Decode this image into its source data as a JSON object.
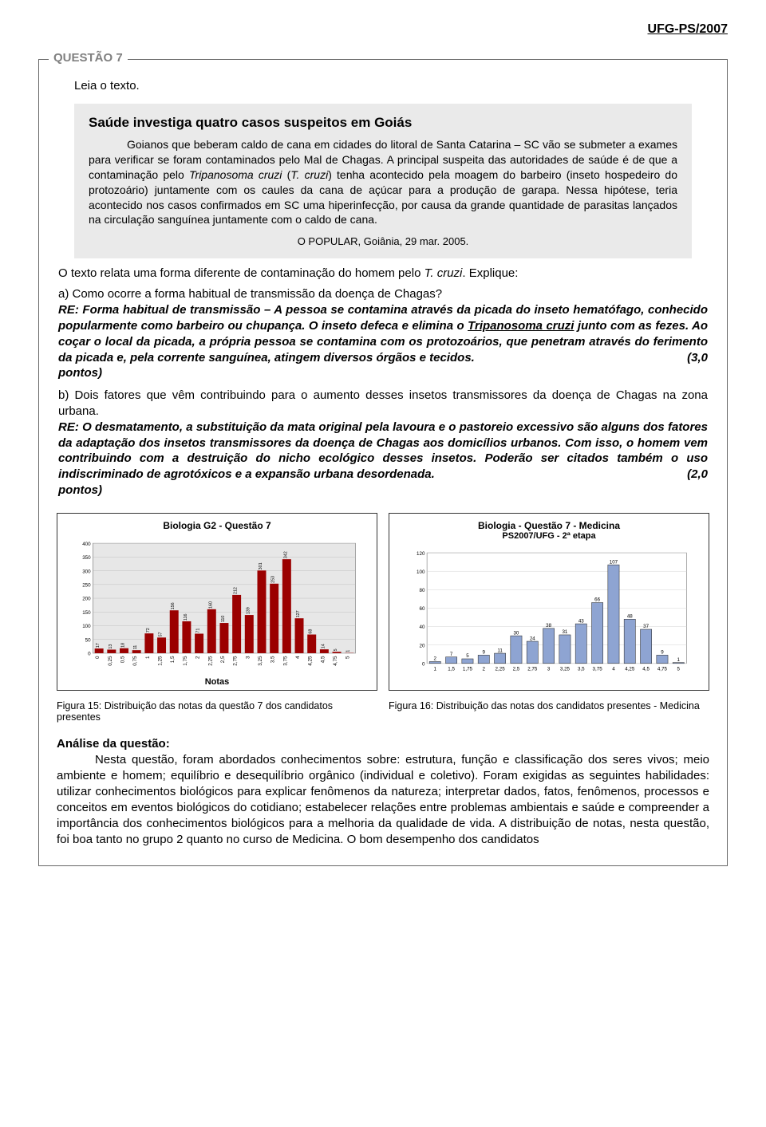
{
  "header": "UFG-PS/2007",
  "question_label": "QUESTÃO 7",
  "intro": "Leia o texto.",
  "quote": {
    "title": "Saúde investiga quatro casos suspeitos em Goiás",
    "para1": "Goianos que beberam caldo de cana em cidades do litoral de Santa Catarina – SC vão se submeter a exames para verificar se foram contaminados pelo Mal de Chagas. A principal suspeita das autoridades de saúde é de que a contaminação pelo ",
    "para1_ital": "Tripanosoma cruzi",
    "para1_after": " (",
    "para1_ital2": "T. cruzi",
    "para1_tail": ") tenha acontecido pela moagem do barbeiro (inseto hospedeiro do protozoário) juntamente com os caules da cana de açúcar para a produção de garapa. Nessa hipótese, teria acontecido nos casos confirmados em SC uma hiperinfecção, por causa da grande quantidade de parasitas lançados na circulação sanguínea juntamente com o caldo de cana.",
    "source": "O POPULAR, Goiânia, 29 mar. 2005."
  },
  "below_quote_pre": "O texto relata uma forma diferente de contaminação do homem pelo ",
  "below_quote_ital": "T. cruzi",
  "below_quote_post": ". Explique:",
  "item_a": {
    "label": "a)",
    "question": " Como ocorre a forma habitual de transmissão da doença de Chagas?",
    "answer_pre": "RE: Forma habitual de transmissão – A pessoa se contamina através da picada do inseto hematófago, conhecido popularmente como barbeiro ou chupança. O inseto defeca e elimina o ",
    "answer_ul": "Tripanosoma cruzi",
    "answer_mid": " junto com as fezes. Ao coçar o local da picada, a própria pessoa se contamina com os protozoários, que penetram através do ferimento da picada e, pela corrente sanguínea, atingem diversos órgãos e tecidos.",
    "score": "(3,0",
    "pontos": "pontos)"
  },
  "item_b": {
    "label": "b)",
    "question": " Dois fatores que vêm contribuindo para o aumento desses insetos transmissores da doença de Chagas na zona urbana.",
    "answer": "RE: O desmatamento, a substituição da mata original pela lavoura e o pastoreio excessivo são alguns dos fatores da adaptação dos insetos transmissores da doença de Chagas aos domicílios urbanos. Com isso, o homem vem contribuindo com a destruição do nicho ecológico desses insetos. Poderão ser citados também o uso indiscriminado de agrotóxicos e a expansão urbana desordenada.",
    "score": "(2,0",
    "pontos": "pontos)"
  },
  "chart1": {
    "title": "Biologia G2 - Questão 7",
    "type": "bar",
    "categories": [
      "0",
      "0,25",
      "0,5",
      "0,75",
      "1",
      "1,25",
      "1,5",
      "1,75",
      "2",
      "2,25",
      "2,5",
      "2,75",
      "3",
      "3,25",
      "3,5",
      "3,75",
      "4",
      "4,25",
      "4,5",
      "4,75",
      "5"
    ],
    "values": [
      17,
      13,
      18,
      11,
      72,
      57,
      156,
      116,
      71,
      160,
      110,
      212,
      139,
      301,
      253,
      342,
      127,
      68,
      14,
      5,
      1
    ],
    "ylim": [
      0,
      400
    ],
    "ytick_step": 50,
    "bar_color": "#9b0000",
    "bg_color": "#e7e7e7",
    "grid_color": "#bcbcbc",
    "label_color": "#000000",
    "value_fontsize": 6,
    "tick_fontsize": 7,
    "axis_label": "Notas"
  },
  "chart2": {
    "title": "Biologia - Questão 7 - Medicina",
    "subtitle": "PS2007/UFG - 2ª etapa",
    "type": "bar",
    "categories": [
      "1",
      "1,5",
      "1,75",
      "2",
      "2,25",
      "2,5",
      "2,75",
      "3",
      "3,25",
      "3,5",
      "3,75",
      "4",
      "4,25",
      "4,5",
      "4,75",
      "5"
    ],
    "values": [
      2,
      7,
      5,
      9,
      11,
      30,
      24,
      38,
      31,
      43,
      66,
      107,
      48,
      37,
      9,
      1
    ],
    "ylim": [
      0,
      120
    ],
    "ytick_step": 20,
    "bar_color": "#8ea4d2",
    "bar_border": "#2b2b2b",
    "bg_color": "#ffffff",
    "grid_color": "#cfcfcf",
    "label_color": "#000000",
    "value_fontsize": 7,
    "tick_fontsize": 7
  },
  "fig15": "Figura 15: Distribuição das notas da questão 7 dos candidatos presentes",
  "fig16": "Figura 16: Distribuição das notas dos candidatos presentes - Medicina",
  "analysis_head": "Análise da questão:",
  "analysis_body": "Nesta questão, foram abordados conhecimentos sobre: estrutura, função e classificação dos seres vivos; meio ambiente e homem; equilíbrio e desequilíbrio orgânico (individual e coletivo). Foram exigidas as seguintes habilidades: utilizar conhecimentos biológicos para explicar fenômenos da natureza; interpretar dados, fatos, fenômenos, processos e conceitos em eventos biológicos do cotidiano; estabelecer relações entre problemas ambientais e saúde e compreender a importância dos conhecimentos biológicos para a melhoria da qualidade de vida.  A distribuição de notas, nesta questão, foi boa tanto no grupo 2 quanto no curso de Medicina. O bom desempenho dos candidatos"
}
